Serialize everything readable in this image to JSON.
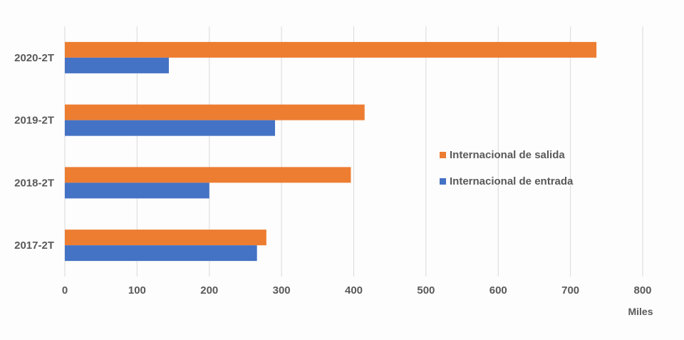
{
  "chart_data": {
    "type": "bar",
    "orientation": "horizontal",
    "categories": [
      "2020-2T",
      "2019-2T",
      "2018-2T",
      "2017-2T"
    ],
    "series": [
      {
        "name": "Internacional de salida",
        "values": [
          736,
          415,
          396,
          279
        ],
        "color": "#ED7D31"
      },
      {
        "name": "Internacional de entrada",
        "values": [
          144,
          291,
          200,
          266
        ],
        "color": "#4472C4"
      }
    ],
    "xlim": [
      0,
      800
    ],
    "xticks": [
      0,
      100,
      200,
      300,
      400,
      500,
      600,
      700,
      800
    ],
    "xlabel": "Miles",
    "grid": true,
    "legend_position": "right"
  }
}
